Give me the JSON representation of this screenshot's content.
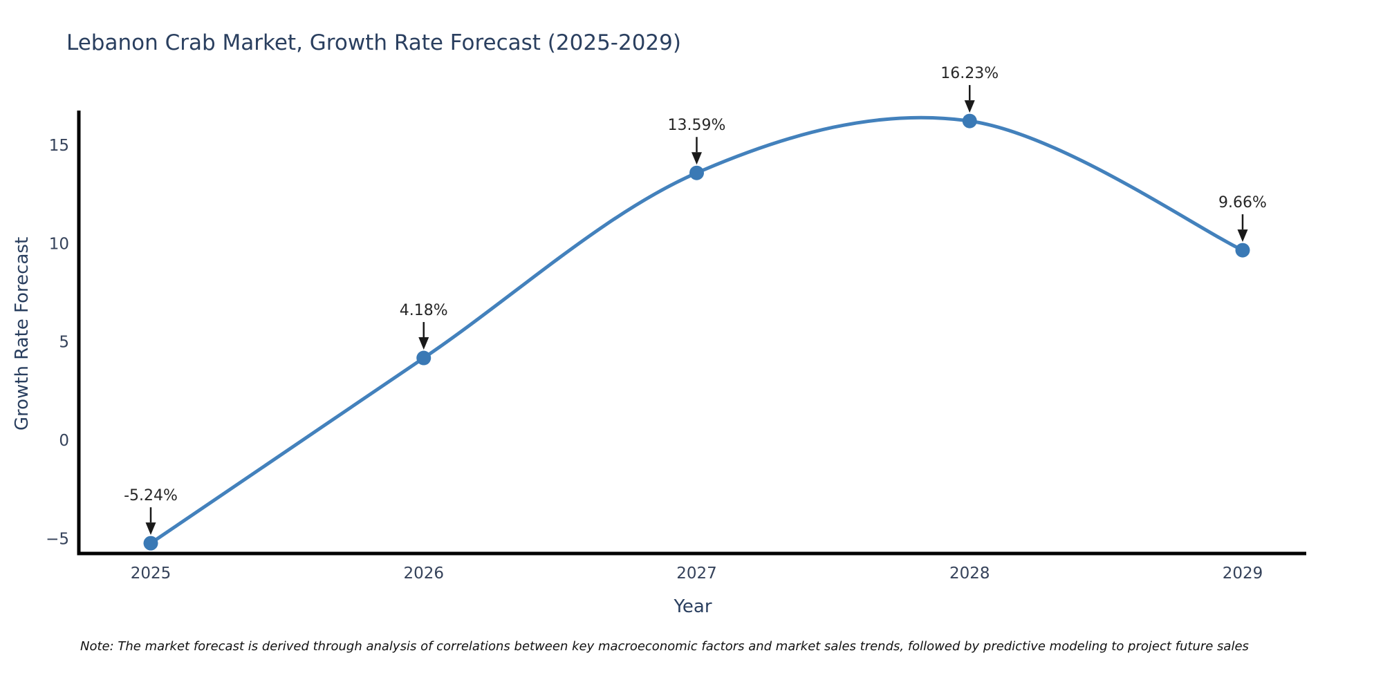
{
  "title": "Lebanon Crab Market, Growth Rate Forecast (2025-2029)",
  "note": "Note: The market forecast is derived through analysis of correlations between key macroeconomic factors and market sales trends, followed by predictive modeling to project future sales",
  "chart_data": {
    "type": "line",
    "line_shape": "spline",
    "title": "Lebanon Crab Market, Growth Rate Forecast (2025-2029)",
    "xlabel": "Year",
    "ylabel": "Growth Rate Forecast",
    "x": [
      2025,
      2026,
      2027,
      2028,
      2029
    ],
    "y": [
      -5.24,
      4.18,
      13.59,
      16.23,
      9.66
    ],
    "point_labels": [
      "-5.24%",
      "4.18%",
      "13.59%",
      "16.23%",
      "9.66%"
    ],
    "x_tick_labels": [
      "2025",
      "2026",
      "2027",
      "2028",
      "2029"
    ],
    "y_tick_values": [
      15,
      10,
      5,
      0,
      -5
    ],
    "y_tick_labels": [
      "15",
      "10",
      "5",
      "0",
      "−5"
    ],
    "xlim": [
      2024.74,
      2029.23
    ],
    "ylim": [
      -5.8,
      16.7
    ],
    "grid": false,
    "legend": "none",
    "line_color": "#4381bc",
    "marker_color": "#3a79b5",
    "axis_line_color": "#000000",
    "annotation_color": "#1a1a1a",
    "title_color": "#2a3f5f",
    "background_color": "#ffffff"
  }
}
